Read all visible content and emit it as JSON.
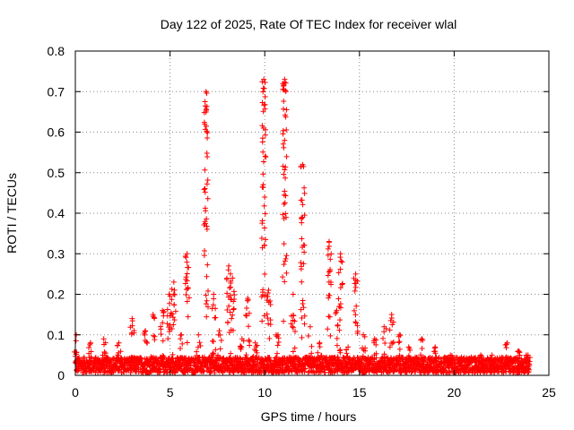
{
  "chart_data": {
    "type": "scatter",
    "title": "Day 122 of 2025, Rate Of TEC Index for receiver wlal",
    "xlabel": "GPS time / hours",
    "ylabel": "ROTI / TECUs",
    "xlim": [
      0,
      25
    ],
    "ylim": [
      0,
      0.8
    ],
    "xticks": [
      0,
      5,
      10,
      15,
      20,
      25
    ],
    "xtick_labels": [
      "0",
      "5",
      "10",
      "15",
      "20",
      "25"
    ],
    "yticks": [
      0,
      0.1,
      0.2,
      0.3,
      0.4,
      0.5,
      0.6,
      0.7,
      0.8
    ],
    "ytick_labels": [
      "0",
      "0.1",
      "0.2",
      "0.3",
      "0.4",
      "0.5",
      "0.6",
      "0.7",
      "0.8"
    ],
    "grid": true,
    "marker": "+",
    "color": "#ff0000",
    "x_data_range_hours": [
      0,
      24
    ],
    "background_level": 0.03,
    "peaks": [
      {
        "x": 0.05,
        "y": 0.1
      },
      {
        "x": 0.8,
        "y": 0.08
      },
      {
        "x": 1.5,
        "y": 0.09
      },
      {
        "x": 2.3,
        "y": 0.08
      },
      {
        "x": 3.0,
        "y": 0.14
      },
      {
        "x": 3.7,
        "y": 0.11
      },
      {
        "x": 4.1,
        "y": 0.15
      },
      {
        "x": 4.6,
        "y": 0.16
      },
      {
        "x": 4.95,
        "y": 0.2
      },
      {
        "x": 5.2,
        "y": 0.23
      },
      {
        "x": 5.6,
        "y": 0.1
      },
      {
        "x": 5.9,
        "y": 0.3
      },
      {
        "x": 6.5,
        "y": 0.1
      },
      {
        "x": 6.9,
        "y": 0.7
      },
      {
        "x": 7.3,
        "y": 0.2
      },
      {
        "x": 7.6,
        "y": 0.11
      },
      {
        "x": 8.1,
        "y": 0.27
      },
      {
        "x": 8.3,
        "y": 0.24
      },
      {
        "x": 8.8,
        "y": 0.09
      },
      {
        "x": 9.1,
        "y": 0.19
      },
      {
        "x": 9.5,
        "y": 0.08
      },
      {
        "x": 9.95,
        "y": 0.73
      },
      {
        "x": 10.2,
        "y": 0.21
      },
      {
        "x": 10.7,
        "y": 0.1
      },
      {
        "x": 11.05,
        "y": 0.73
      },
      {
        "x": 11.5,
        "y": 0.2
      },
      {
        "x": 12.0,
        "y": 0.52
      },
      {
        "x": 12.4,
        "y": 0.12
      },
      {
        "x": 12.9,
        "y": 0.08
      },
      {
        "x": 13.4,
        "y": 0.33
      },
      {
        "x": 13.8,
        "y": 0.16
      },
      {
        "x": 14.0,
        "y": 0.3
      },
      {
        "x": 14.4,
        "y": 0.07
      },
      {
        "x": 14.8,
        "y": 0.25
      },
      {
        "x": 15.2,
        "y": 0.1
      },
      {
        "x": 15.8,
        "y": 0.09
      },
      {
        "x": 16.3,
        "y": 0.12
      },
      {
        "x": 16.7,
        "y": 0.15
      },
      {
        "x": 17.1,
        "y": 0.1
      },
      {
        "x": 17.6,
        "y": 0.07
      },
      {
        "x": 18.3,
        "y": 0.09
      },
      {
        "x": 19.0,
        "y": 0.07
      },
      {
        "x": 19.8,
        "y": 0.05
      },
      {
        "x": 20.7,
        "y": 0.04
      },
      {
        "x": 21.4,
        "y": 0.05
      },
      {
        "x": 22.0,
        "y": 0.05
      },
      {
        "x": 22.8,
        "y": 0.08
      },
      {
        "x": 23.4,
        "y": 0.06
      },
      {
        "x": 23.9,
        "y": 0.05
      }
    ]
  }
}
